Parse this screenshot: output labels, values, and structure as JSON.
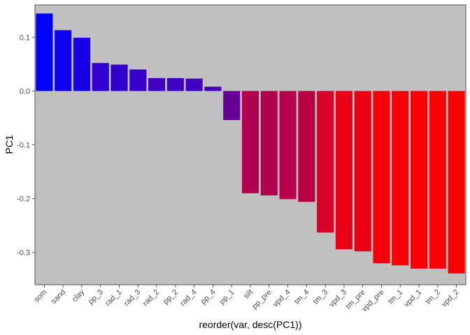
{
  "chart_data": {
    "type": "bar",
    "xlabel": "reorder(var, desc(PC1))",
    "ylabel": "PC1",
    "ylim": [
      -0.36,
      0.16
    ],
    "yticks": [
      0.1,
      0.0,
      -0.1,
      -0.2,
      -0.3
    ],
    "ytick_labels": [
      "0.1",
      "0.0",
      "-0.1",
      "-0.2",
      "-0.3"
    ],
    "grid": false,
    "panel_background": "#c0c0c0",
    "color_scale": {
      "high": "#0000ff",
      "low": "#ff0000"
    },
    "categories": [
      "som",
      "sand",
      "clay",
      "pp_3",
      "rad_1",
      "rad_3",
      "rad_2",
      "pp_2",
      "rad_4",
      "pp_4",
      "pp_1",
      "silt",
      "pp_pre",
      "vpd_4",
      "tm_4",
      "tm_3",
      "vpd_3",
      "tm_pre",
      "vpd_pre",
      "tm_1",
      "vpd_1",
      "tm_2",
      "vpd_2"
    ],
    "values": [
      0.144,
      0.113,
      0.099,
      0.052,
      0.049,
      0.04,
      0.024,
      0.024,
      0.023,
      0.008,
      -0.054,
      -0.19,
      -0.194,
      -0.201,
      -0.206,
      -0.263,
      -0.294,
      -0.298,
      -0.32,
      -0.324,
      -0.33,
      -0.33,
      -0.339
    ]
  }
}
